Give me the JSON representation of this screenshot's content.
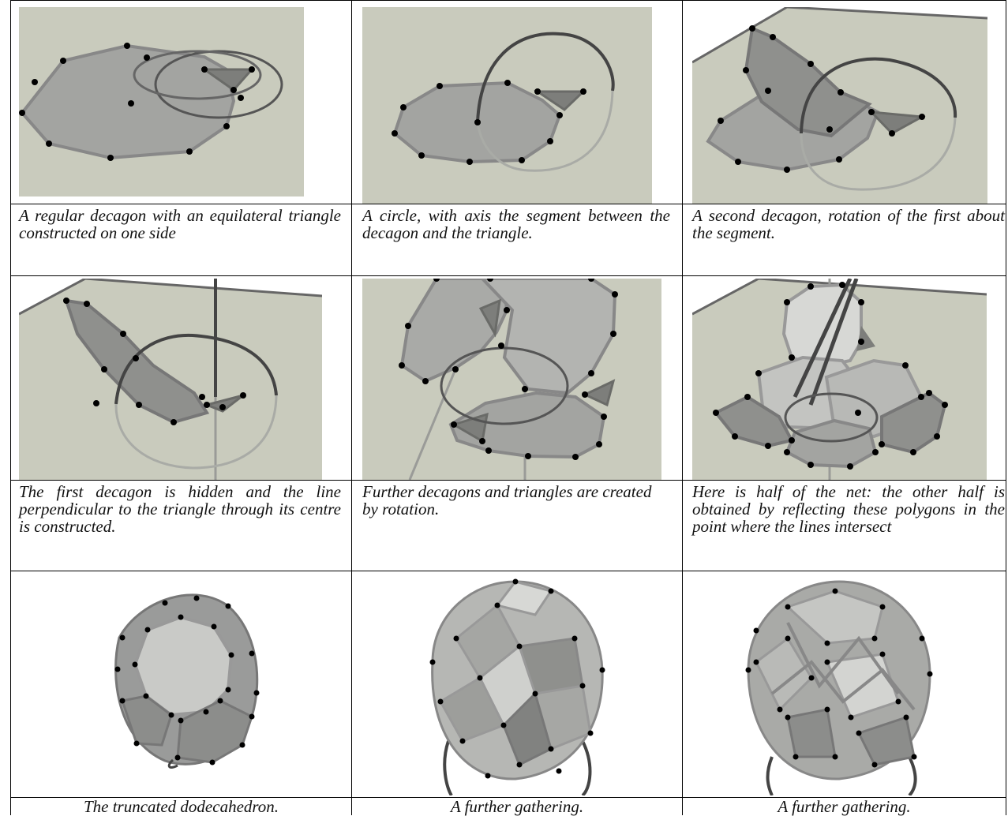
{
  "captions": {
    "r1c1": "A regular decagon with an equilateral triangle constructed on one side",
    "r1c2": "A circle, with axis the segment between the decagon and the triangle.",
    "r1c3": "A second decagon, rotation of the first about the segment.",
    "r2c1": "The first decagon is hidden and the line perpendicular to the triangle through its centre is constructed.",
    "r2c2": "Further decagons and triangles are created by rotation.",
    "r2c3": "Here is half of the net: the other half is obtained by reflecting these polygons in the point where the lines intersect",
    "r3c1": "The truncated dodecahedron.",
    "r3c2": "A further gathering.",
    "r3c3": "A further gathering."
  },
  "colors": {
    "background_panel": "#c9cbbd",
    "polygon_fill": "#9a9b9a",
    "vertex": "#000000"
  }
}
